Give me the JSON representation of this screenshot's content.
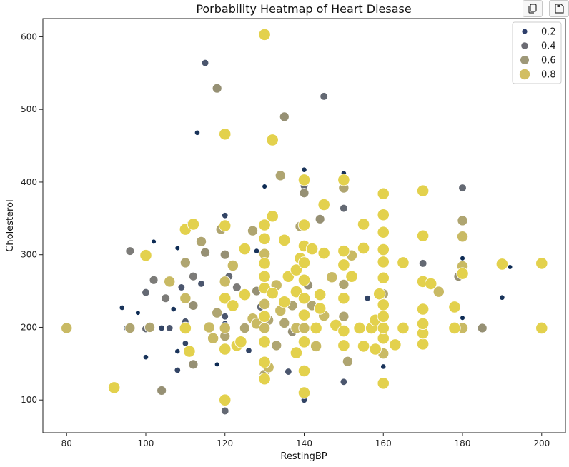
{
  "chart_data": {
    "type": "scatter",
    "title": "Porbability Heatmap of Heart Diesase",
    "xlabel": "RestingBP",
    "ylabel": "Cholesterol",
    "xlim": [
      74,
      206
    ],
    "ylim": [
      55,
      625
    ],
    "xticks": [
      80,
      100,
      120,
      140,
      160,
      180,
      200
    ],
    "yticks": [
      100,
      200,
      300,
      400,
      500,
      600
    ],
    "legend": {
      "position": "top-right",
      "entries": [
        {
          "label": "0.2",
          "color": "#2e3f6b"
        },
        {
          "label": "0.4",
          "color": "#6b6b73"
        },
        {
          "label": "0.6",
          "color": "#9e9878"
        },
        {
          "label": "0.8",
          "color": "#d2be62"
        }
      ]
    },
    "colormap": "cividis",
    "points": [
      [
        80,
        199,
        0.8
      ],
      [
        92,
        117,
        0.9
      ],
      [
        94,
        227,
        0.1
      ],
      [
        95,
        199,
        0.1
      ],
      [
        96,
        199,
        0.7
      ],
      [
        96,
        305,
        0.5
      ],
      [
        98,
        220,
        0.05
      ],
      [
        100,
        198,
        0.4
      ],
      [
        100,
        248,
        0.4
      ],
      [
        100,
        159,
        0.1
      ],
      [
        100,
        299,
        0.9
      ],
      [
        101,
        200,
        0.7
      ],
      [
        102,
        265,
        0.5
      ],
      [
        102,
        318,
        0.05
      ],
      [
        104,
        113,
        0.6
      ],
      [
        104,
        199,
        0.2
      ],
      [
        105,
        240,
        0.5
      ],
      [
        106,
        199,
        0.3
      ],
      [
        106,
        263,
        0.8
      ],
      [
        107,
        225,
        0.1
      ],
      [
        108,
        309,
        0.05
      ],
      [
        108,
        141,
        0.2
      ],
      [
        108,
        167,
        0.1
      ],
      [
        109,
        255,
        0.3
      ],
      [
        110,
        199,
        0.9
      ],
      [
        110,
        240,
        0.8
      ],
      [
        110,
        289,
        0.7
      ],
      [
        110,
        335,
        0.9
      ],
      [
        110,
        178,
        0.2
      ],
      [
        110,
        208,
        0.3
      ],
      [
        111,
        343,
        0.1
      ],
      [
        111,
        167,
        0.9
      ],
      [
        112,
        230,
        0.6
      ],
      [
        112,
        270,
        0.5
      ],
      [
        112,
        342,
        0.9
      ],
      [
        112,
        149,
        0.6
      ],
      [
        113,
        468,
        0.1
      ],
      [
        114,
        318,
        0.7
      ],
      [
        114,
        260,
        0.3
      ],
      [
        115,
        564,
        0.3
      ],
      [
        115,
        303,
        0.6
      ],
      [
        116,
        200,
        0.8
      ],
      [
        117,
        185,
        0.8
      ],
      [
        118,
        529,
        0.6
      ],
      [
        118,
        220,
        0.7
      ],
      [
        118,
        149,
        0.05
      ],
      [
        119,
        335,
        0.7
      ],
      [
        120,
        100,
        0.9
      ],
      [
        120,
        85,
        0.4
      ],
      [
        120,
        170,
        0.9
      ],
      [
        120,
        188,
        0.7
      ],
      [
        120,
        199,
        0.8
      ],
      [
        120,
        205,
        0.2
      ],
      [
        120,
        215,
        0.3
      ],
      [
        120,
        240,
        0.9
      ],
      [
        120,
        263,
        0.8
      ],
      [
        120,
        300,
        0.6
      ],
      [
        120,
        340,
        0.9
      ],
      [
        120,
        354,
        0.2
      ],
      [
        120,
        466,
        0.9
      ],
      [
        121,
        270,
        0.4
      ],
      [
        122,
        230,
        0.9
      ],
      [
        122,
        285,
        0.8
      ],
      [
        123,
        255,
        0.5
      ],
      [
        123,
        175,
        0.9
      ],
      [
        124,
        180,
        0.9
      ],
      [
        125,
        199,
        0.7
      ],
      [
        125,
        245,
        0.9
      ],
      [
        125,
        308,
        0.9
      ],
      [
        126,
        168,
        0.2
      ],
      [
        127,
        333,
        0.7
      ],
      [
        127,
        212,
        0.8
      ],
      [
        128,
        205,
        0.8
      ],
      [
        128,
        250,
        0.6
      ],
      [
        128,
        305,
        0.1
      ],
      [
        129,
        228,
        0.4
      ],
      [
        130,
        129,
        0.9
      ],
      [
        130,
        135,
        0.7
      ],
      [
        130,
        152,
        0.9
      ],
      [
        130,
        180,
        0.9
      ],
      [
        130,
        199,
        0.8
      ],
      [
        130,
        215,
        0.9
      ],
      [
        130,
        232,
        0.8
      ],
      [
        130,
        254,
        0.9
      ],
      [
        130,
        270,
        0.9
      ],
      [
        130,
        288,
        0.9
      ],
      [
        130,
        301,
        0.8
      ],
      [
        130,
        322,
        0.9
      ],
      [
        130,
        341,
        0.9
      ],
      [
        130,
        394,
        0.05
      ],
      [
        130,
        603,
        0.9
      ],
      [
        131,
        145,
        0.8
      ],
      [
        131,
        210,
        0.7
      ],
      [
        132,
        247,
        0.9
      ],
      [
        132,
        353,
        0.9
      ],
      [
        132,
        458,
        0.9
      ],
      [
        133,
        175,
        0.7
      ],
      [
        133,
        258,
        0.8
      ],
      [
        134,
        223,
        0.8
      ],
      [
        134,
        409,
        0.7
      ],
      [
        135,
        206,
        0.7
      ],
      [
        135,
        235,
        0.9
      ],
      [
        135,
        320,
        0.9
      ],
      [
        135,
        490,
        0.6
      ],
      [
        136,
        139,
        0.3
      ],
      [
        136,
        270,
        0.9
      ],
      [
        137,
        194,
        0.6
      ],
      [
        137,
        230,
        0.7
      ],
      [
        138,
        165,
        0.9
      ],
      [
        138,
        199,
        0.8
      ],
      [
        138,
        249,
        0.9
      ],
      [
        138,
        279,
        0.9
      ],
      [
        139,
        295,
        0.9
      ],
      [
        139,
        339,
        0.7
      ],
      [
        140,
        100,
        0.2
      ],
      [
        140,
        110,
        0.9
      ],
      [
        140,
        140,
        0.9
      ],
      [
        140,
        180,
        0.9
      ],
      [
        140,
        199,
        0.8
      ],
      [
        140,
        217,
        0.9
      ],
      [
        140,
        240,
        0.9
      ],
      [
        140,
        265,
        0.9
      ],
      [
        140,
        289,
        0.9
      ],
      [
        140,
        312,
        0.9
      ],
      [
        140,
        341,
        0.9
      ],
      [
        140,
        385,
        0.6
      ],
      [
        140,
        395,
        0.4
      ],
      [
        140,
        403,
        0.9
      ],
      [
        140,
        417,
        0.1
      ],
      [
        141,
        258,
        0.6
      ],
      [
        142,
        230,
        0.7
      ],
      [
        142,
        308,
        0.9
      ],
      [
        143,
        174,
        0.8
      ],
      [
        143,
        199,
        0.9
      ],
      [
        144,
        226,
        0.9
      ],
      [
        144,
        245,
        0.9
      ],
      [
        144,
        349,
        0.6
      ],
      [
        145,
        518,
        0.4
      ],
      [
        145,
        369,
        0.9
      ],
      [
        145,
        216,
        0.8
      ],
      [
        145,
        302,
        0.9
      ],
      [
        147,
        269,
        0.8
      ],
      [
        148,
        203,
        0.9
      ],
      [
        150,
        125,
        0.3
      ],
      [
        150,
        175,
        0.9
      ],
      [
        150,
        195,
        0.9
      ],
      [
        150,
        215,
        0.7
      ],
      [
        150,
        240,
        0.9
      ],
      [
        150,
        259,
        0.7
      ],
      [
        150,
        286,
        0.9
      ],
      [
        150,
        305,
        0.9
      ],
      [
        150,
        364,
        0.4
      ],
      [
        150,
        392,
        0.7
      ],
      [
        150,
        403,
        0.9
      ],
      [
        150,
        412,
        0.1
      ],
      [
        151,
        153,
        0.7
      ],
      [
        152,
        270,
        0.9
      ],
      [
        152,
        299,
        0.8
      ],
      [
        154,
        199,
        0.9
      ],
      [
        155,
        174,
        0.9
      ],
      [
        155,
        309,
        0.9
      ],
      [
        155,
        342,
        0.9
      ],
      [
        156,
        240,
        0.2
      ],
      [
        157,
        199,
        0.9
      ],
      [
        158,
        170,
        0.9
      ],
      [
        158,
        210,
        0.9
      ],
      [
        159,
        246,
        0.9
      ],
      [
        160,
        123,
        0.9
      ],
      [
        160,
        146,
        0.1
      ],
      [
        160,
        164,
        0.8
      ],
      [
        160,
        185,
        0.9
      ],
      [
        160,
        199,
        0.9
      ],
      [
        160,
        215,
        0.9
      ],
      [
        160,
        231,
        0.9
      ],
      [
        160,
        246,
        0.7
      ],
      [
        160,
        268,
        0.9
      ],
      [
        160,
        290,
        0.9
      ],
      [
        160,
        307,
        0.9
      ],
      [
        160,
        331,
        0.9
      ],
      [
        160,
        355,
        0.9
      ],
      [
        160,
        384,
        0.9
      ],
      [
        163,
        176,
        0.9
      ],
      [
        165,
        199,
        0.9
      ],
      [
        165,
        289,
        0.9
      ],
      [
        170,
        177,
        0.9
      ],
      [
        170,
        192,
        0.9
      ],
      [
        170,
        205,
        0.9
      ],
      [
        170,
        225,
        0.9
      ],
      [
        170,
        263,
        0.9
      ],
      [
        170,
        288,
        0.4
      ],
      [
        170,
        326,
        0.9
      ],
      [
        170,
        388,
        0.9
      ],
      [
        172,
        260,
        0.9
      ],
      [
        174,
        249,
        0.8
      ],
      [
        178,
        199,
        0.9
      ],
      [
        178,
        228,
        0.9
      ],
      [
        179,
        270,
        0.6
      ],
      [
        180,
        199,
        0.8
      ],
      [
        180,
        213,
        0.05
      ],
      [
        180,
        274,
        0.9
      ],
      [
        180,
        284,
        0.8
      ],
      [
        180,
        295,
        0.05
      ],
      [
        180,
        325,
        0.8
      ],
      [
        180,
        347,
        0.7
      ],
      [
        180,
        392,
        0.4
      ],
      [
        185,
        199,
        0.6
      ],
      [
        190,
        241,
        0.1
      ],
      [
        190,
        287,
        0.9
      ],
      [
        192,
        283,
        0.05
      ],
      [
        200,
        199,
        0.9
      ],
      [
        200,
        288,
        0.9
      ]
    ]
  },
  "toolbar": {
    "copy_icon": "copy-icon",
    "save_icon": "save-icon"
  }
}
